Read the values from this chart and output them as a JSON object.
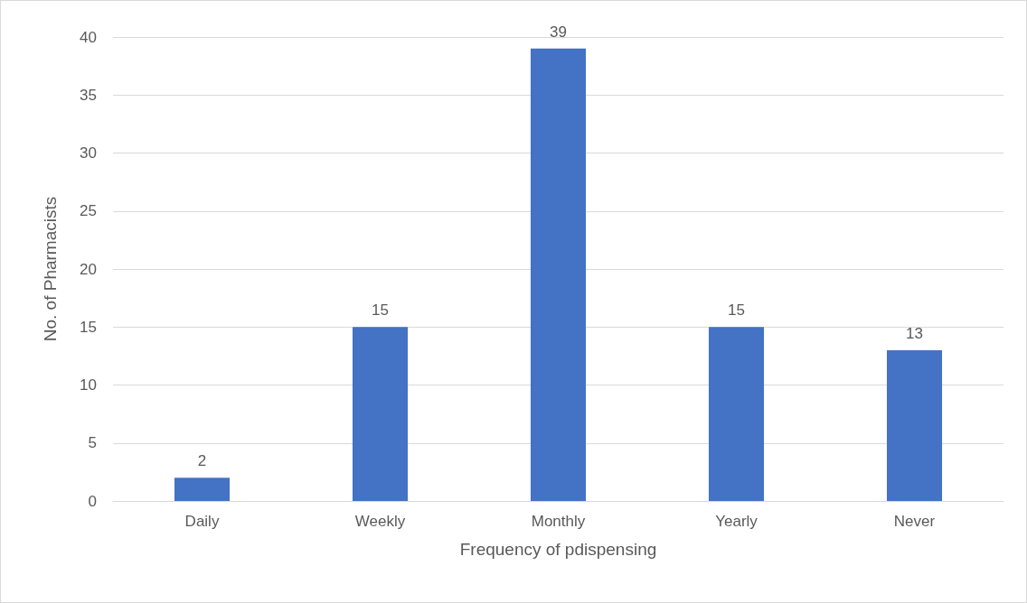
{
  "chart_data": {
    "type": "bar",
    "xlabel": "Frequency of pdispensing",
    "ylabel": "No. of Pharmacists",
    "categories": [
      "Daily",
      "Weekly",
      "Monthly",
      "Yearly",
      "Never"
    ],
    "values": [
      2,
      15,
      39,
      15,
      13
    ],
    "color": "#4472c4",
    "ylim": [
      0,
      40
    ],
    "yticks": [
      0,
      5,
      10,
      15,
      20,
      25,
      30,
      35,
      40
    ],
    "grid": "y",
    "data_labels": true
  }
}
